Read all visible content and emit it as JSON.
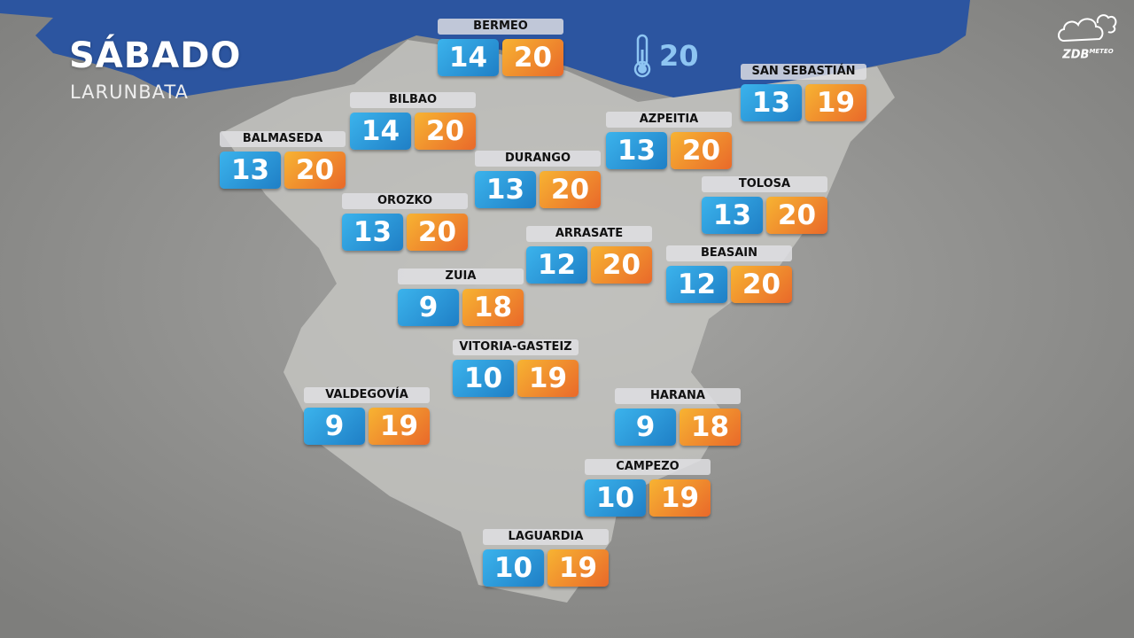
{
  "header": {
    "day": "SÁBADO",
    "day_basque": "LARUNBATA"
  },
  "sea_temperature": {
    "icon": "thermometer-icon",
    "value": "20"
  },
  "logo": {
    "brand": "ZDB",
    "sub": "METEO"
  },
  "colors": {
    "sea": "#2c55a0",
    "min": "#2a97d9",
    "max": "#f08a2c"
  },
  "cities": [
    {
      "name": "BERMEO",
      "min": "14",
      "max": "20"
    },
    {
      "name": "BILBAO",
      "min": "14",
      "max": "20"
    },
    {
      "name": "BALMASEDA",
      "min": "13",
      "max": "20"
    },
    {
      "name": "OROZKO",
      "min": "13",
      "max": "20"
    },
    {
      "name": "DURANGO",
      "min": "13",
      "max": "20"
    },
    {
      "name": "AZPEITIA",
      "min": "13",
      "max": "20"
    },
    {
      "name": "SAN SEBASTIÁN",
      "min": "13",
      "max": "19"
    },
    {
      "name": "TOLOSA",
      "min": "13",
      "max": "20"
    },
    {
      "name": "ARRASATE",
      "min": "12",
      "max": "20"
    },
    {
      "name": "BEASAIN",
      "min": "12",
      "max": "20"
    },
    {
      "name": "ZUIA",
      "min": "9",
      "max": "18"
    },
    {
      "name": "VITORIA-GASTEIZ",
      "min": "10",
      "max": "19"
    },
    {
      "name": "VALDEGOVÍA",
      "min": "9",
      "max": "19"
    },
    {
      "name": "HARANA",
      "min": "9",
      "max": "18"
    },
    {
      "name": "CAMPEZO",
      "min": "10",
      "max": "19"
    },
    {
      "name": "LAGUARDIA",
      "min": "10",
      "max": "19"
    }
  ]
}
